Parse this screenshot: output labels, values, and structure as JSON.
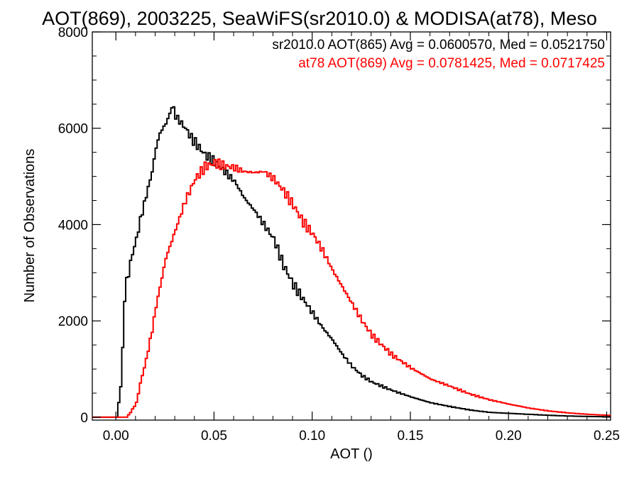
{
  "chart_data": {
    "type": "line",
    "title": "AOT(869), 2003225, SeaWiFS(sr2010.0) & MODISA(at78), Meso",
    "xlabel": "AOT ()",
    "ylabel": "Number of Observations",
    "xlim": [
      -0.012,
      0.252
    ],
    "ylim": [
      -60,
      8000
    ],
    "xticks": [
      0.0,
      0.05,
      0.1,
      0.15,
      0.2,
      0.25
    ],
    "xtick_labels": [
      "0.00",
      "0.05",
      "0.10",
      "0.15",
      "0.20",
      "0.25"
    ],
    "yticks": [
      0,
      2000,
      4000,
      6000,
      8000
    ],
    "ytick_labels": [
      "0",
      "2000",
      "4000",
      "6000",
      "8000"
    ],
    "grid": false,
    "legend_position": "top-right",
    "series": [
      {
        "name": "sr2010.0 AOT(865) Avg = 0.0600570, Med = 0.0521750",
        "color": "#000000",
        "x": [
          -0.01,
          0.0,
          0.001,
          0.002,
          0.003,
          0.004,
          0.005,
          0.006,
          0.008,
          0.01,
          0.012,
          0.015,
          0.018,
          0.02,
          0.022,
          0.025,
          0.027,
          0.028,
          0.029,
          0.03,
          0.032,
          0.035,
          0.038,
          0.04,
          0.045,
          0.05,
          0.055,
          0.06,
          0.065,
          0.07,
          0.075,
          0.08,
          0.085,
          0.09,
          0.095,
          0.1,
          0.105,
          0.11,
          0.115,
          0.12,
          0.125,
          0.13,
          0.14,
          0.15,
          0.16,
          0.17,
          0.18,
          0.19,
          0.2,
          0.21,
          0.22,
          0.23,
          0.24,
          0.25
        ],
        "values": [
          0,
          0,
          300,
          650,
          1400,
          2500,
          2800,
          3000,
          3400,
          3700,
          4100,
          4600,
          5100,
          5600,
          5900,
          6100,
          6300,
          6450,
          6400,
          6250,
          6150,
          6000,
          5800,
          5700,
          5450,
          5300,
          5100,
          4900,
          4550,
          4300,
          4000,
          3700,
          3150,
          2750,
          2450,
          2150,
          1850,
          1600,
          1300,
          1050,
          860,
          730,
          560,
          420,
          300,
          220,
          150,
          100,
          80,
          60,
          40,
          25,
          15,
          10
        ]
      },
      {
        "name": "at78 AOT(869) Avg = 0.0781425, Med = 0.0717425",
        "color": "#ff0000",
        "x": [
          -0.01,
          0.005,
          0.007,
          0.01,
          0.012,
          0.015,
          0.018,
          0.02,
          0.025,
          0.03,
          0.035,
          0.04,
          0.045,
          0.05,
          0.055,
          0.06,
          0.065,
          0.07,
          0.075,
          0.08,
          0.085,
          0.09,
          0.095,
          0.1,
          0.105,
          0.11,
          0.115,
          0.12,
          0.125,
          0.13,
          0.14,
          0.15,
          0.16,
          0.17,
          0.18,
          0.19,
          0.2,
          0.21,
          0.22,
          0.23,
          0.24,
          0.25
        ],
        "values": [
          0,
          0,
          100,
          300,
          700,
          1200,
          1800,
          2300,
          3300,
          3900,
          4500,
          4950,
          5200,
          5280,
          5220,
          5180,
          5100,
          5080,
          5100,
          4950,
          4700,
          4400,
          4050,
          3800,
          3450,
          3050,
          2700,
          2350,
          2000,
          1700,
          1300,
          1020,
          790,
          640,
          480,
          360,
          270,
          190,
          130,
          90,
          60,
          40
        ]
      }
    ]
  }
}
